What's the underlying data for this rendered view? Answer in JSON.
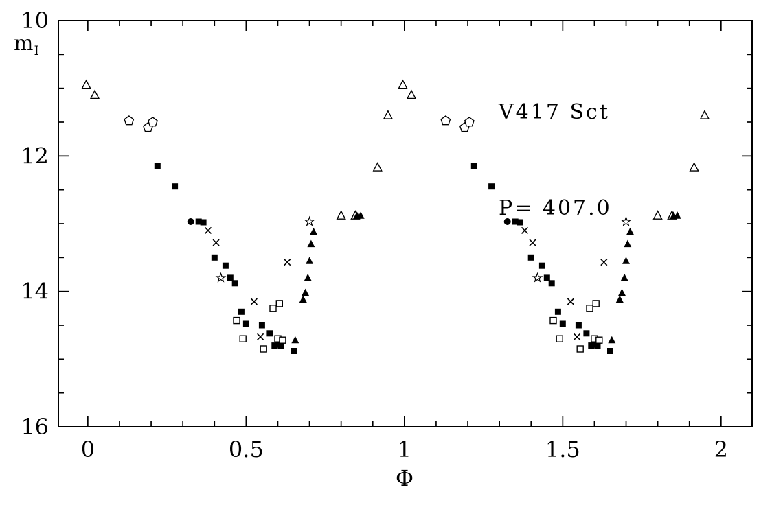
{
  "figure": {
    "background": "#ffffff",
    "ink": "#000000"
  },
  "chart_data": {
    "type": "scatter",
    "title": "V417 Sct",
    "subtitle": "P= 407.0",
    "xlabel": "Φ",
    "ylabel": "mI",
    "ylabel_base": "m",
    "ylabel_sub": "I",
    "xlim": [
      -0.093,
      2.098
    ],
    "ylim": [
      10,
      16
    ],
    "y_axis_inverted_magnitude": true,
    "grid": false,
    "x_major_ticks": [
      0,
      0.5,
      1,
      1.5,
      2
    ],
    "x_tick_labels": [
      "0",
      "0.5",
      "1",
      "1.5",
      "2"
    ],
    "x_minor_step": 0.1,
    "y_major_ticks": [
      10,
      12,
      14,
      16
    ],
    "y_tick_labels": [
      "10",
      "12",
      "14",
      "16"
    ],
    "y_minor_step": 0.5,
    "cycles": 2,
    "phase_duplication_note": "Each observation is plotted at phase φ and φ+1",
    "series": [
      {
        "name": "open-triangle-set",
        "marker": "triangle-open",
        "points": [
          [
            -0.005,
            10.95
          ],
          [
            0.022,
            11.1
          ],
          [
            0.8,
            12.88
          ],
          [
            0.845,
            12.88
          ],
          [
            0.915,
            12.17
          ],
          [
            0.948,
            11.4
          ]
        ]
      },
      {
        "name": "open-pentagon-set",
        "marker": "pentagon-open",
        "points": [
          [
            0.13,
            11.48
          ],
          [
            0.19,
            11.58
          ],
          [
            0.205,
            11.5
          ]
        ]
      },
      {
        "name": "filled-square-set",
        "marker": "square-filled",
        "points": [
          [
            0.22,
            12.15
          ],
          [
            0.275,
            12.45
          ],
          [
            0.35,
            12.97
          ],
          [
            0.365,
            12.98
          ],
          [
            0.4,
            13.5
          ],
          [
            0.435,
            13.62
          ],
          [
            0.45,
            13.8
          ],
          [
            0.465,
            13.88
          ],
          [
            0.485,
            14.3
          ],
          [
            0.5,
            14.48
          ],
          [
            0.55,
            14.5
          ],
          [
            0.575,
            14.62
          ],
          [
            0.59,
            14.8
          ],
          [
            0.61,
            14.8
          ],
          [
            0.65,
            14.88
          ]
        ]
      },
      {
        "name": "filled-circle-set",
        "marker": "circle-filled",
        "points": [
          [
            0.325,
            12.97
          ],
          [
            0.6,
            14.78
          ]
        ]
      },
      {
        "name": "cross-set",
        "marker": "cross",
        "points": [
          [
            0.38,
            13.1
          ],
          [
            0.405,
            13.28
          ],
          [
            0.525,
            14.15
          ],
          [
            0.545,
            14.67
          ],
          [
            0.63,
            13.57
          ]
        ]
      },
      {
        "name": "open-square-set",
        "marker": "square-open",
        "points": [
          [
            0.47,
            14.43
          ],
          [
            0.49,
            14.7
          ],
          [
            0.555,
            14.85
          ],
          [
            0.585,
            14.25
          ],
          [
            0.605,
            14.18
          ],
          [
            0.6,
            14.7
          ],
          [
            0.615,
            14.72
          ]
        ]
      },
      {
        "name": "open-star-set",
        "marker": "star-open",
        "points": [
          [
            0.42,
            13.8
          ],
          [
            0.7,
            12.97
          ]
        ]
      },
      {
        "name": "filled-triangle-set",
        "marker": "triangle-filled",
        "points": [
          [
            0.655,
            14.72
          ],
          [
            0.68,
            14.12
          ],
          [
            0.687,
            14.02
          ],
          [
            0.695,
            13.8
          ],
          [
            0.7,
            13.55
          ],
          [
            0.705,
            13.3
          ],
          [
            0.713,
            13.12
          ],
          [
            0.85,
            12.88
          ],
          [
            0.862,
            12.88
          ]
        ]
      }
    ]
  }
}
